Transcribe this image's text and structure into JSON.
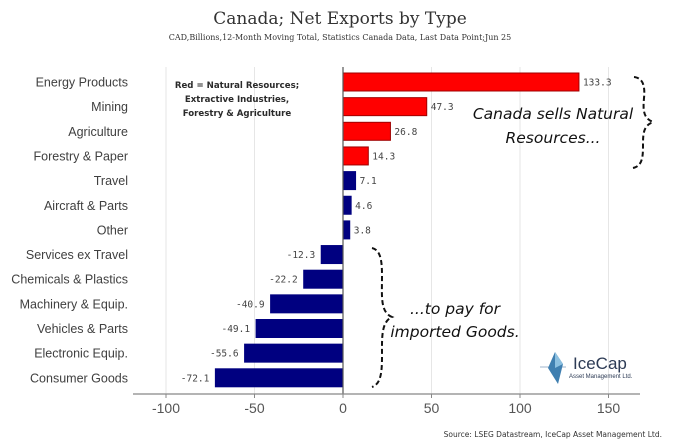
{
  "chart_data": {
    "type": "bar",
    "orientation": "horizontal",
    "title": "Canada; Net Exports by Type",
    "subtitle": "CAD,Billions,12-Month Moving Total, Statistics Canada Data, Last Data Point;Jun 25",
    "categories": [
      "Energy Products",
      "Mining",
      "Agriculture",
      "Forestry & Paper",
      "Travel",
      "Aircraft & Parts",
      "Other",
      "Services ex Travel",
      "Chemicals & Plastics",
      "Machinery & Equip.",
      "Vehicles & Parts",
      "Electronic Equip.",
      "Consumer Goods"
    ],
    "values": [
      133.3,
      47.3,
      26.8,
      14.3,
      7.1,
      4.6,
      3.8,
      -12.3,
      -22.2,
      -40.9,
      -49.1,
      -55.6,
      -72.1
    ],
    "value_labels": [
      "133.3",
      "47.3",
      "26.8",
      "14.3",
      "7.1",
      "4.6",
      "3.8",
      "-12.3",
      "-22.2",
      "-40.9",
      "-49.1",
      "-55.6",
      "-72.1"
    ],
    "groups": [
      "natural",
      "natural",
      "natural",
      "natural",
      "other",
      "other",
      "other",
      "other",
      "other",
      "other",
      "other",
      "other",
      "other"
    ],
    "xlim": [
      -119,
      168
    ],
    "xticks": [
      -100,
      -50,
      0,
      50,
      100,
      150
    ],
    "xtick_labels": [
      "-100",
      "-50",
      "0",
      "50",
      "100",
      "150"
    ],
    "grid": true,
    "xlabel": "",
    "ylabel": "",
    "colors": {
      "natural": "#ff0000",
      "other": "#000080",
      "natural_border": "#a00000"
    },
    "legend_note": [
      "Red = Natural Resources;",
      "Extractive Industries,",
      "Forestry & Agriculture"
    ],
    "annotations": {
      "top": [
        "Canada sells Natural",
        "Resources..."
      ],
      "bottom": [
        "...to pay for",
        "imported Goods."
      ]
    },
    "source": "Source: LSEG Datastream, IceCap Asset Management Ltd."
  },
  "logo": {
    "name": "IceCap",
    "tagline": "Asset Management Ltd."
  }
}
